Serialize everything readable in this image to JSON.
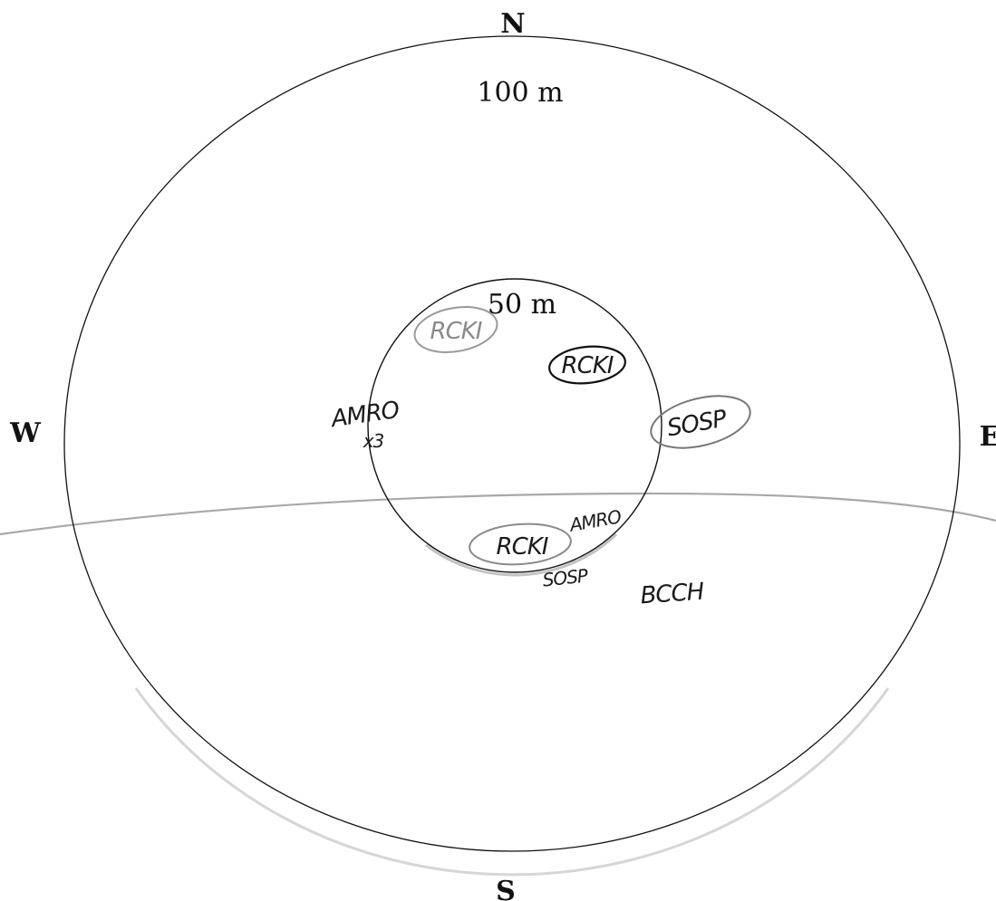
{
  "compass": {
    "north": "N",
    "south": "S",
    "west": "W",
    "east": "E"
  },
  "rings": {
    "outer_label": "100 m",
    "inner_label": "50 m"
  },
  "observations": {
    "rcki_gray_top": "RCKI",
    "rcki_dark": "RCKI",
    "sosp_east": "SOSP",
    "amro_west": "AMRO",
    "amro_west_count": "x3",
    "amro_south": "AMRO",
    "rcki_bottom": "RCKI",
    "sosp_bottom": "SOSP",
    "bcch": "BCCH"
  },
  "colors": {
    "ink": "#111111",
    "pencil": "#9a9a9a",
    "boundary": "#a8a8a8"
  }
}
